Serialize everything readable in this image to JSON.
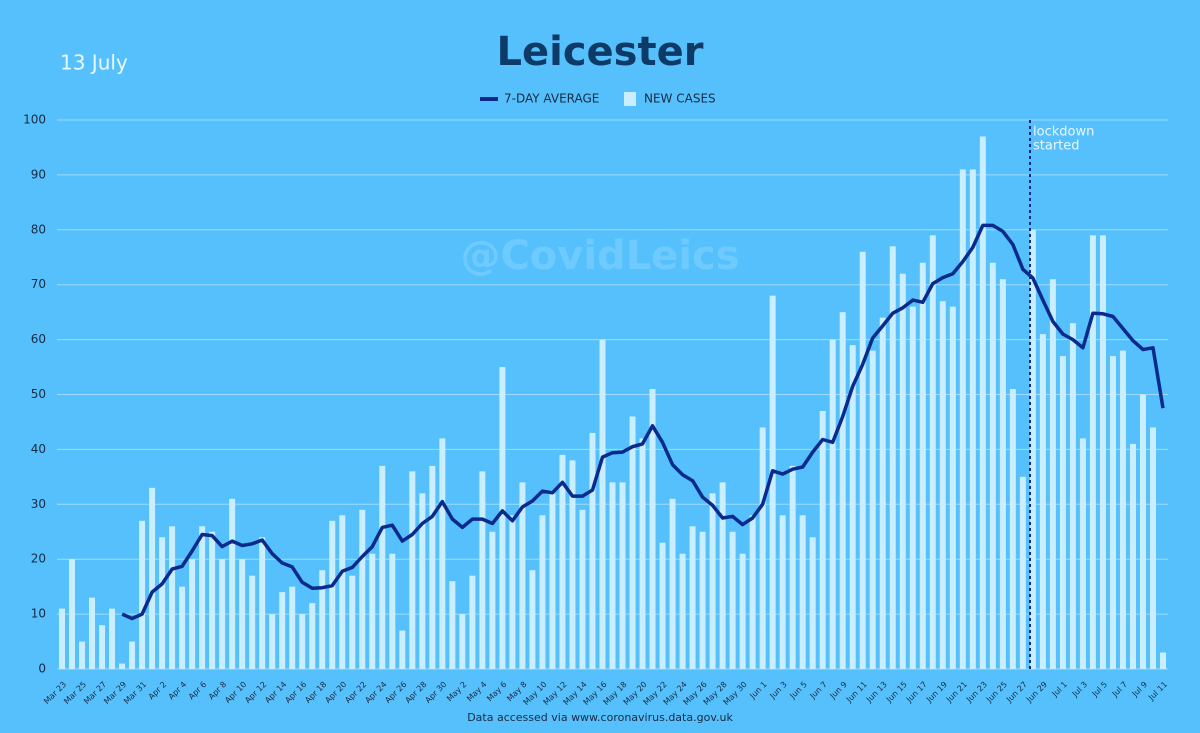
{
  "chart_data": {
    "type": "bar",
    "title": "Leicester",
    "subtitle": "13 July",
    "watermark": "@CovidLeics",
    "source": "Data accessed via www.coronavirus.data.gov.uk",
    "annotation": [
      "lockdown",
      "started"
    ],
    "categories": [
      "Mar 23",
      null,
      "Mar 25",
      null,
      "Mar 27",
      null,
      "Mar 29",
      null,
      "Mar 31",
      null,
      "Apr 2",
      null,
      "Apr 4",
      null,
      "Apr 6",
      null,
      "Apr 8",
      null,
      "Apr 10",
      null,
      "Apr 12",
      null,
      "Apr 14",
      null,
      "Apr 16",
      null,
      "Apr 18",
      null,
      "Apr 20",
      null,
      "Apr 22",
      null,
      "Apr 24",
      null,
      "Apr 26",
      null,
      "Apr 28",
      null,
      "Apr 30",
      null,
      "May 2",
      null,
      "May 4",
      null,
      "May 6",
      null,
      "May 8",
      null,
      "May 10",
      null,
      "May 12",
      null,
      "May 14",
      null,
      "May 16",
      null,
      "May 18",
      null,
      "May 20",
      null,
      "May 22",
      null,
      "May 24",
      null,
      "May 26",
      null,
      "May 28",
      null,
      "May 30",
      null,
      "Jun 1",
      null,
      "Jun 3",
      null,
      "Jun 5",
      null,
      "Jun 7",
      null,
      "Jun 9",
      null,
      "Jun 11",
      null,
      "Jun 13",
      null,
      "Jun 15",
      null,
      "Jun 17",
      null,
      "Jun 19",
      null,
      "Jun 21",
      null,
      "Jun 23",
      null,
      "Jun 25",
      null,
      "Jun 27",
      null,
      "Jun 29",
      null,
      "Jul 1",
      null,
      "Jul 3",
      null,
      "Jul 5",
      null,
      "Jul 7",
      null,
      "Jul 9",
      null,
      "Jul 11"
    ],
    "series": [
      {
        "name": "7-DAY AVERAGE",
        "type": "line",
        "color": "#0b2a8c",
        "values": [
          null,
          null,
          null,
          null,
          null,
          null,
          10,
          9.2,
          10,
          14,
          15.5,
          18.2,
          18.7,
          21.5,
          24.5,
          24.3,
          22.3,
          23.3,
          22.5,
          22.8,
          23.5,
          21,
          19.3,
          18.6,
          15.8,
          14.7,
          14.8,
          15.2,
          17.8,
          18.5,
          20.5,
          22.3,
          25.8,
          26.2,
          23.3,
          24.5,
          26.5,
          27.8,
          30.5,
          27.3,
          25.8,
          27.3,
          27.3,
          26.5,
          28.8,
          27,
          29.5,
          30.6,
          32.4,
          32.1,
          34,
          31.5,
          31.5,
          32.6,
          38.6,
          39.4,
          39.5,
          40.5,
          41,
          44.3,
          41.3,
          37.2,
          35.4,
          34.3,
          31.3,
          29.8,
          27.5,
          27.8,
          26.3,
          27.5,
          30,
          36.1,
          35.5,
          36.4,
          36.8,
          39.5,
          41.8,
          41.3,
          46,
          51.5,
          55.5,
          60.3,
          62.5,
          64.8,
          65.8,
          67.2,
          66.8,
          70.2,
          71.3,
          72,
          74.2,
          76.8,
          80.8,
          80.8,
          79.7,
          77.3,
          72.8,
          71.2,
          67.2,
          63.3,
          61,
          60,
          58.5,
          64.8,
          64.7,
          64.2,
          62,
          59.8,
          58.2,
          58.5,
          47.5
        ]
      },
      {
        "name": "NEW CASES",
        "type": "bar",
        "color": "#c8eeff",
        "values": [
          11,
          20,
          5,
          13,
          8,
          11,
          1,
          5,
          27,
          33,
          24,
          26,
          15,
          20,
          26,
          25,
          20,
          31,
          20,
          17,
          24,
          10,
          14,
          15,
          10,
          12,
          18,
          27,
          28,
          17,
          29,
          21,
          37,
          21,
          7,
          36,
          32,
          37,
          42,
          16,
          10,
          17,
          36,
          25,
          55,
          28,
          34,
          18,
          28,
          32,
          39,
          38,
          29,
          43,
          60,
          34,
          34,
          46,
          42,
          51,
          23,
          31,
          21,
          26,
          25,
          32,
          34,
          25,
          21,
          28,
          44,
          68,
          28,
          37,
          28,
          24,
          47,
          60,
          65,
          59,
          76,
          58,
          64,
          77,
          72,
          66,
          74,
          79,
          67,
          66,
          91,
          91,
          97,
          74,
          71,
          51,
          35,
          80,
          61,
          71,
          57,
          63,
          42,
          79,
          79,
          57,
          58,
          41,
          50,
          44,
          3
        ]
      }
    ],
    "ylim": [
      0,
      100
    ],
    "yticks": [
      0,
      10,
      20,
      30,
      40,
      50,
      60,
      70,
      80,
      90,
      100
    ],
    "grid": true
  }
}
